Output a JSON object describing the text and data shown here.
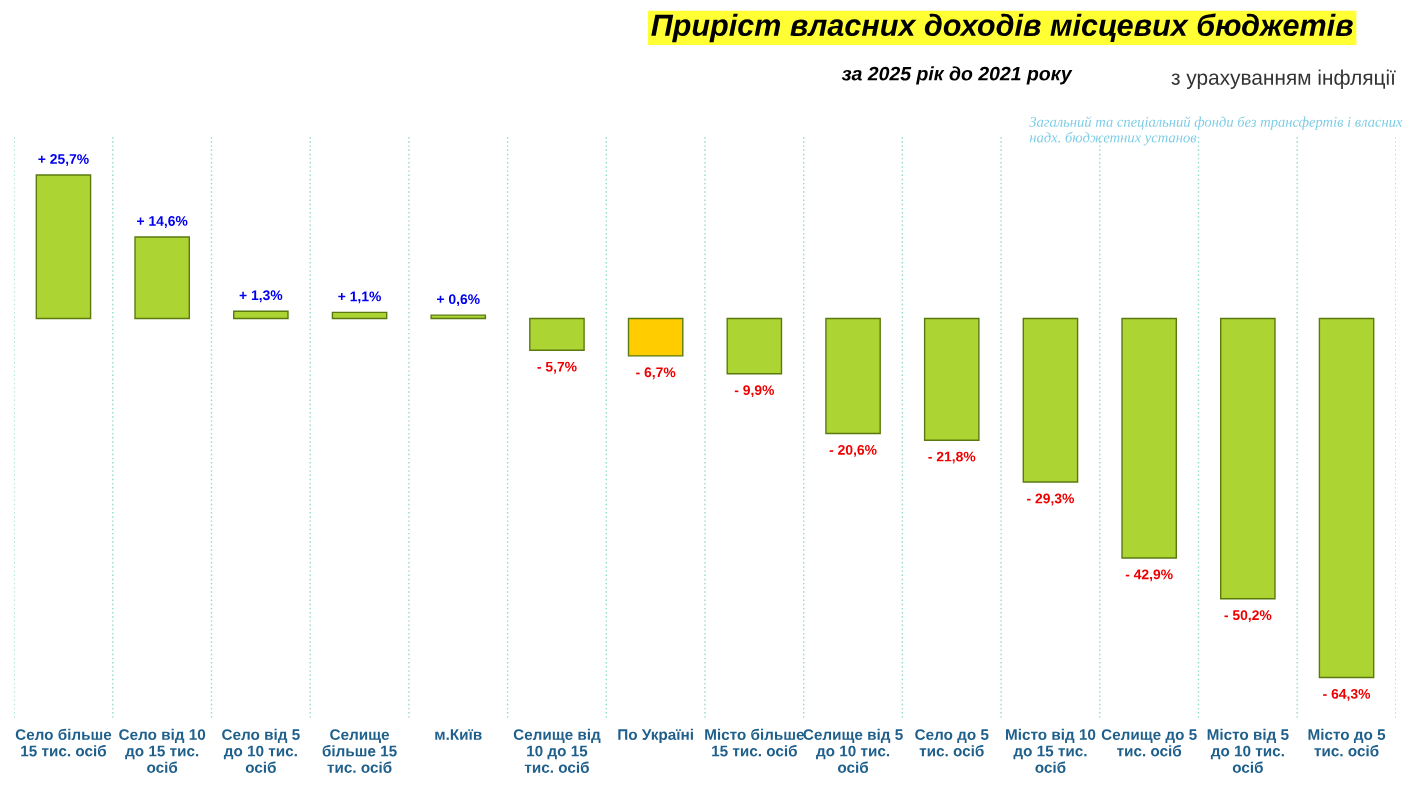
{
  "chart_data": {
    "type": "bar",
    "title": "Приріст власних доходів місцевих бюджетів",
    "subtitle": "за 2025 рік до 2021 року",
    "annotations": [
      "з урахуванням інфляції",
      "Загальний та спеціальний фонди без трансфертів і власних надх. бюджетних установ"
    ],
    "categories": [
      "Село більше 15 тис. осіб",
      "Село від 10 до 15 тис. осіб",
      "Село від 5 до 10 тис. осіб",
      "Селище більше 15 тис. осіб",
      "м.Київ",
      "Селище від 10 до 15 тис. осіб",
      "По Україні",
      "Місто більше 15 тис. осіб",
      "Селище від 5 до 10 тис. осіб",
      "Село до 5 тис. осіб",
      "Місто від 10 до 15 тис. осіб",
      "Селище до 5 тис. осіб",
      "Місто від 5 до 10 тис. осіб",
      "Місто до 5 тис. осіб"
    ],
    "values": [
      25.7,
      14.6,
      1.3,
      1.1,
      0.6,
      -5.7,
      -6.7,
      -9.9,
      -20.6,
      -21.8,
      -29.3,
      -42.9,
      -50.2,
      -64.3
    ],
    "value_labels": [
      "+ 25,7%",
      "+ 14,6%",
      "+ 1,3%",
      "+ 1,1%",
      "+ 0,6%",
      "- 5,7%",
      "- 6,7%",
      "- 9,9%",
      "- 20,6%",
      "- 21,8%",
      "- 29,3%",
      "- 42,9%",
      "- 50,2%",
      "- 64,3%"
    ],
    "colors": [
      "#acd433",
      "#acd433",
      "#acd433",
      "#acd433",
      "#acd433",
      "#acd433",
      "#ffcc00",
      "#acd433",
      "#acd433",
      "#acd433",
      "#acd433",
      "#acd433",
      "#acd433",
      "#acd433"
    ],
    "grid": "x",
    "tick_labels": "x"
  }
}
